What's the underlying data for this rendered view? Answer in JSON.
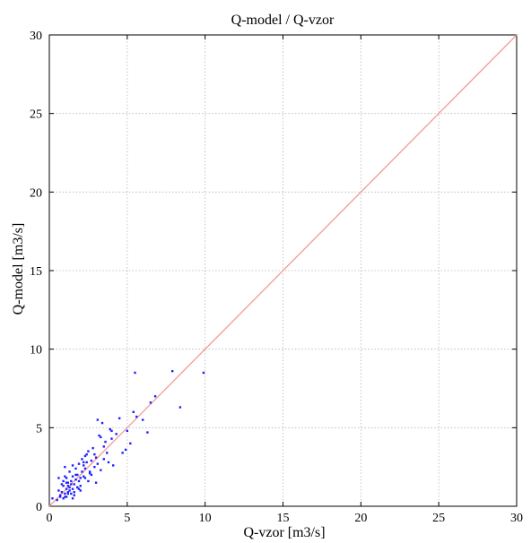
{
  "chart_data": {
    "type": "scatter",
    "title": "Q-model / Q-vzor",
    "xlabel": "Q-vzor   [m3/s]",
    "ylabel": "Q-model   [m3/s]",
    "xlim": [
      0,
      30
    ],
    "ylim": [
      0,
      30
    ],
    "xticks": [
      "0",
      "5",
      "10",
      "15",
      "20",
      "25",
      "30"
    ],
    "yticks": [
      "0",
      "5",
      "10",
      "15",
      "20",
      "25",
      "30"
    ],
    "grid": true,
    "colors": {
      "points": "#1e22ff",
      "reference_line": "#f2a0a0",
      "grid": "#b3b3b3",
      "axes": "#000000"
    },
    "reference_line": {
      "x": [
        0,
        30
      ],
      "y": [
        0,
        30
      ]
    },
    "series": [
      {
        "x": [
          0.2,
          0.5,
          0.6,
          0.7,
          0.8,
          0.9,
          0.9,
          1.0,
          1.0,
          1.1,
          1.1,
          1.2,
          1.2,
          1.3,
          1.3,
          1.4,
          1.4,
          1.5,
          1.5,
          1.6,
          1.6,
          1.7,
          1.7,
          1.8,
          1.8,
          1.9,
          1.9,
          2.0,
          2.0,
          2.1,
          2.1,
          2.2,
          2.2,
          2.3,
          2.3,
          2.4,
          2.5,
          2.5,
          2.6,
          2.7,
          2.8,
          2.9,
          3.0,
          3.0,
          3.1,
          3.2,
          3.3,
          3.4,
          3.5,
          3.6,
          3.7,
          3.8,
          3.9,
          4.0,
          4.1,
          4.3,
          4.5,
          4.7,
          4.9,
          5.0,
          5.2,
          5.4,
          5.5,
          5.6,
          6.0,
          6.3,
          6.5,
          6.8,
          7.9,
          8.4,
          9.9,
          0.6,
          0.8,
          1.0,
          1.1,
          1.3,
          1.5,
          1.7,
          1.9,
          2.2,
          2.4,
          2.7,
          3.1,
          3.5,
          0.9,
          1.2,
          1.6,
          2.0,
          1.4,
          1.8,
          2.6,
          1.0,
          1.2,
          1.5,
          0.7,
          1.1,
          2.3,
          2.9,
          3.3,
          4.0
        ],
        "y": [
          0.5,
          0.4,
          1.8,
          0.7,
          0.9,
          1.3,
          0.5,
          0.8,
          2.5,
          1.1,
          0.6,
          1.5,
          0.9,
          1.2,
          2.2,
          0.8,
          1.6,
          1.1,
          1.9,
          1.4,
          0.9,
          1.7,
          2.4,
          1.2,
          2.0,
          1.6,
          2.7,
          1.8,
          1.3,
          2.2,
          3.0,
          1.9,
          2.6,
          2.4,
          3.2,
          2.8,
          1.6,
          3.5,
          2.2,
          2.9,
          3.7,
          2.5,
          3.1,
          1.5,
          5.5,
          4.5,
          2.3,
          5.3,
          3.8,
          4.1,
          3.4,
          2.8,
          4.9,
          4.3,
          2.6,
          4.6,
          5.6,
          3.4,
          3.6,
          4.8,
          4.0,
          6.0,
          8.5,
          5.7,
          5.5,
          4.7,
          6.6,
          7.0,
          8.6,
          6.3,
          8.5,
          1.0,
          1.4,
          0.6,
          1.8,
          1.0,
          2.6,
          2.0,
          1.1,
          2.8,
          3.3,
          2.0,
          2.7,
          3.0,
          1.6,
          1.3,
          0.7,
          1.0,
          1.4,
          1.2,
          2.1,
          1.9,
          0.8,
          0.5,
          0.6,
          1.5,
          1.8,
          3.3,
          4.4,
          4.8
        ]
      }
    ]
  }
}
